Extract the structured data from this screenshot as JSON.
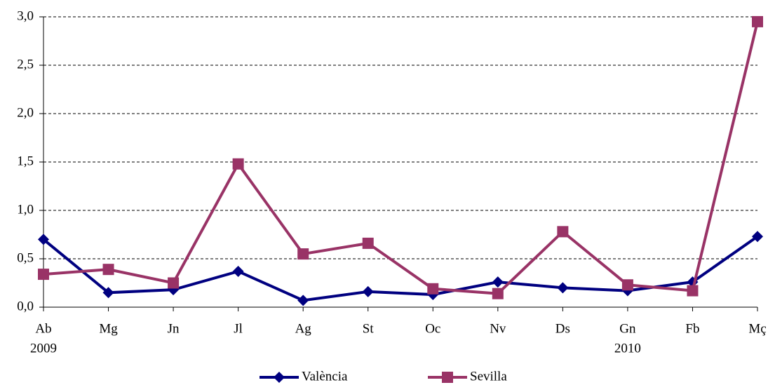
{
  "chart_data": {
    "type": "line",
    "categories": [
      [
        "Ab",
        "2009"
      ],
      [
        "Mg"
      ],
      [
        "Jn"
      ],
      [
        "Jl"
      ],
      [
        "Ag"
      ],
      [
        "St"
      ],
      [
        "Oc"
      ],
      [
        "Nv"
      ],
      [
        "Ds"
      ],
      [
        "Gn",
        "2010"
      ],
      [
        "Fb"
      ],
      [
        "Mç"
      ]
    ],
    "series": [
      {
        "name": "València",
        "color": "#000080",
        "marker": "diamond",
        "values": [
          0.7,
          0.15,
          0.18,
          0.37,
          0.07,
          0.16,
          0.13,
          0.26,
          0.2,
          0.17,
          0.26,
          0.73
        ]
      },
      {
        "name": "Sevilla",
        "color": "#993366",
        "marker": "square",
        "values": [
          0.34,
          0.39,
          0.25,
          1.48,
          0.55,
          0.66,
          0.19,
          0.14,
          0.78,
          0.23,
          0.17,
          2.95
        ]
      }
    ],
    "ylim": [
      0,
      3
    ],
    "yticks": [
      {
        "value": 0,
        "label": "0,0"
      },
      {
        "value": 0.5,
        "label": "0,5"
      },
      {
        "value": 1,
        "label": "1,0"
      },
      {
        "value": 1.5,
        "label": "1,5"
      },
      {
        "value": 2,
        "label": "2,0"
      },
      {
        "value": 2.5,
        "label": "2,5"
      },
      {
        "value": 3,
        "label": "3,0"
      }
    ],
    "grid": true,
    "legend": "bottom"
  }
}
